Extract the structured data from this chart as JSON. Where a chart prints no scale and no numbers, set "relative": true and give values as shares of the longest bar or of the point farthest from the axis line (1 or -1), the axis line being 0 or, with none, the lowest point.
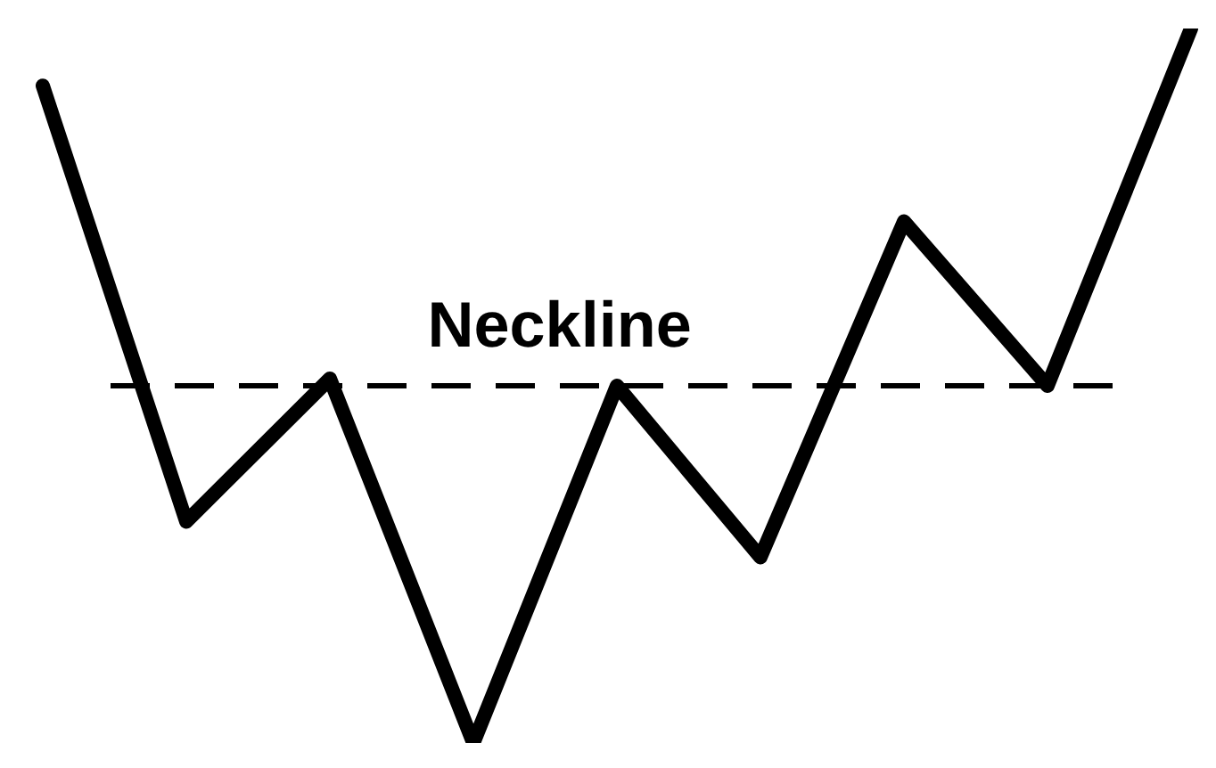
{
  "chart_data": {
    "type": "line",
    "relative": true,
    "legend": false,
    "marker": "none",
    "categories": [
      null,
      null,
      null,
      null,
      null,
      null,
      null,
      null,
      null
    ],
    "series": [
      {
        "color": "#000000",
        "values": [
          0.92,
          0.31,
          0.51,
          0,
          0.5,
          0.26,
          0.73,
          0.5,
          1
        ]
      }
    ],
    "ref_lines": [
      {
        "axis": "y",
        "value": 0.5,
        "label": "Neckline",
        "color": "#000000",
        "line_style": "dashed"
      }
    ]
  }
}
